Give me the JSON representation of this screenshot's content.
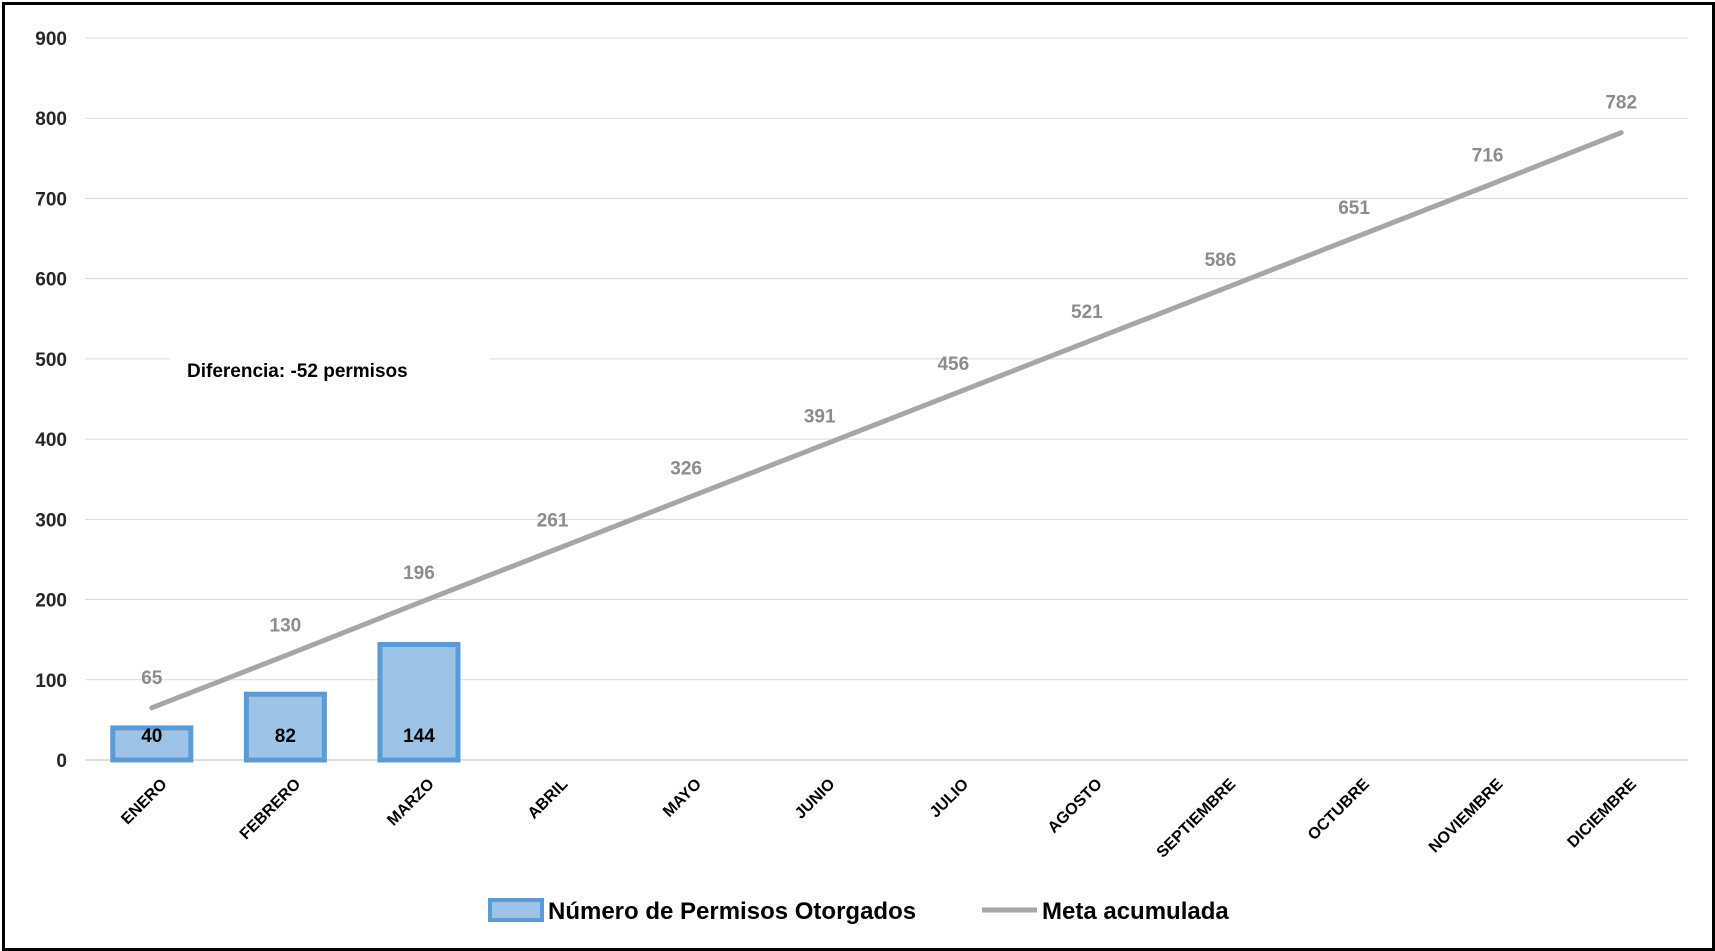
{
  "chart_data": {
    "type": "bar",
    "categories": [
      "ENERO",
      "FEBRERO",
      "MARZO",
      "ABRIL",
      "MAYO",
      "JUNIO",
      "JULIO",
      "AGOSTO",
      "SEPTIEMBRE",
      "OCTUBRE",
      "NOVIEMBRE",
      "DICIEMBRE"
    ],
    "series": [
      {
        "name": "Número de Permisos Otorgados",
        "kind": "bar",
        "values": [
          40,
          82,
          144,
          null,
          null,
          null,
          null,
          null,
          null,
          null,
          null,
          null
        ],
        "color": "#9dc3e6",
        "border_color": "#5b9bd5"
      },
      {
        "name": "Meta acumulada",
        "kind": "line",
        "values": [
          65,
          130,
          196,
          261,
          326,
          391,
          456,
          521,
          586,
          651,
          716,
          782
        ],
        "color": "#a6a6a6",
        "label_color": "#8c8c8c"
      }
    ],
    "ylim": [
      0,
      900
    ],
    "yticks": [
      0,
      100,
      200,
      300,
      400,
      500,
      600,
      700,
      800,
      900
    ],
    "annotation": "Diferencia: -52 permisos",
    "legend_position": "bottom",
    "grid": true
  }
}
